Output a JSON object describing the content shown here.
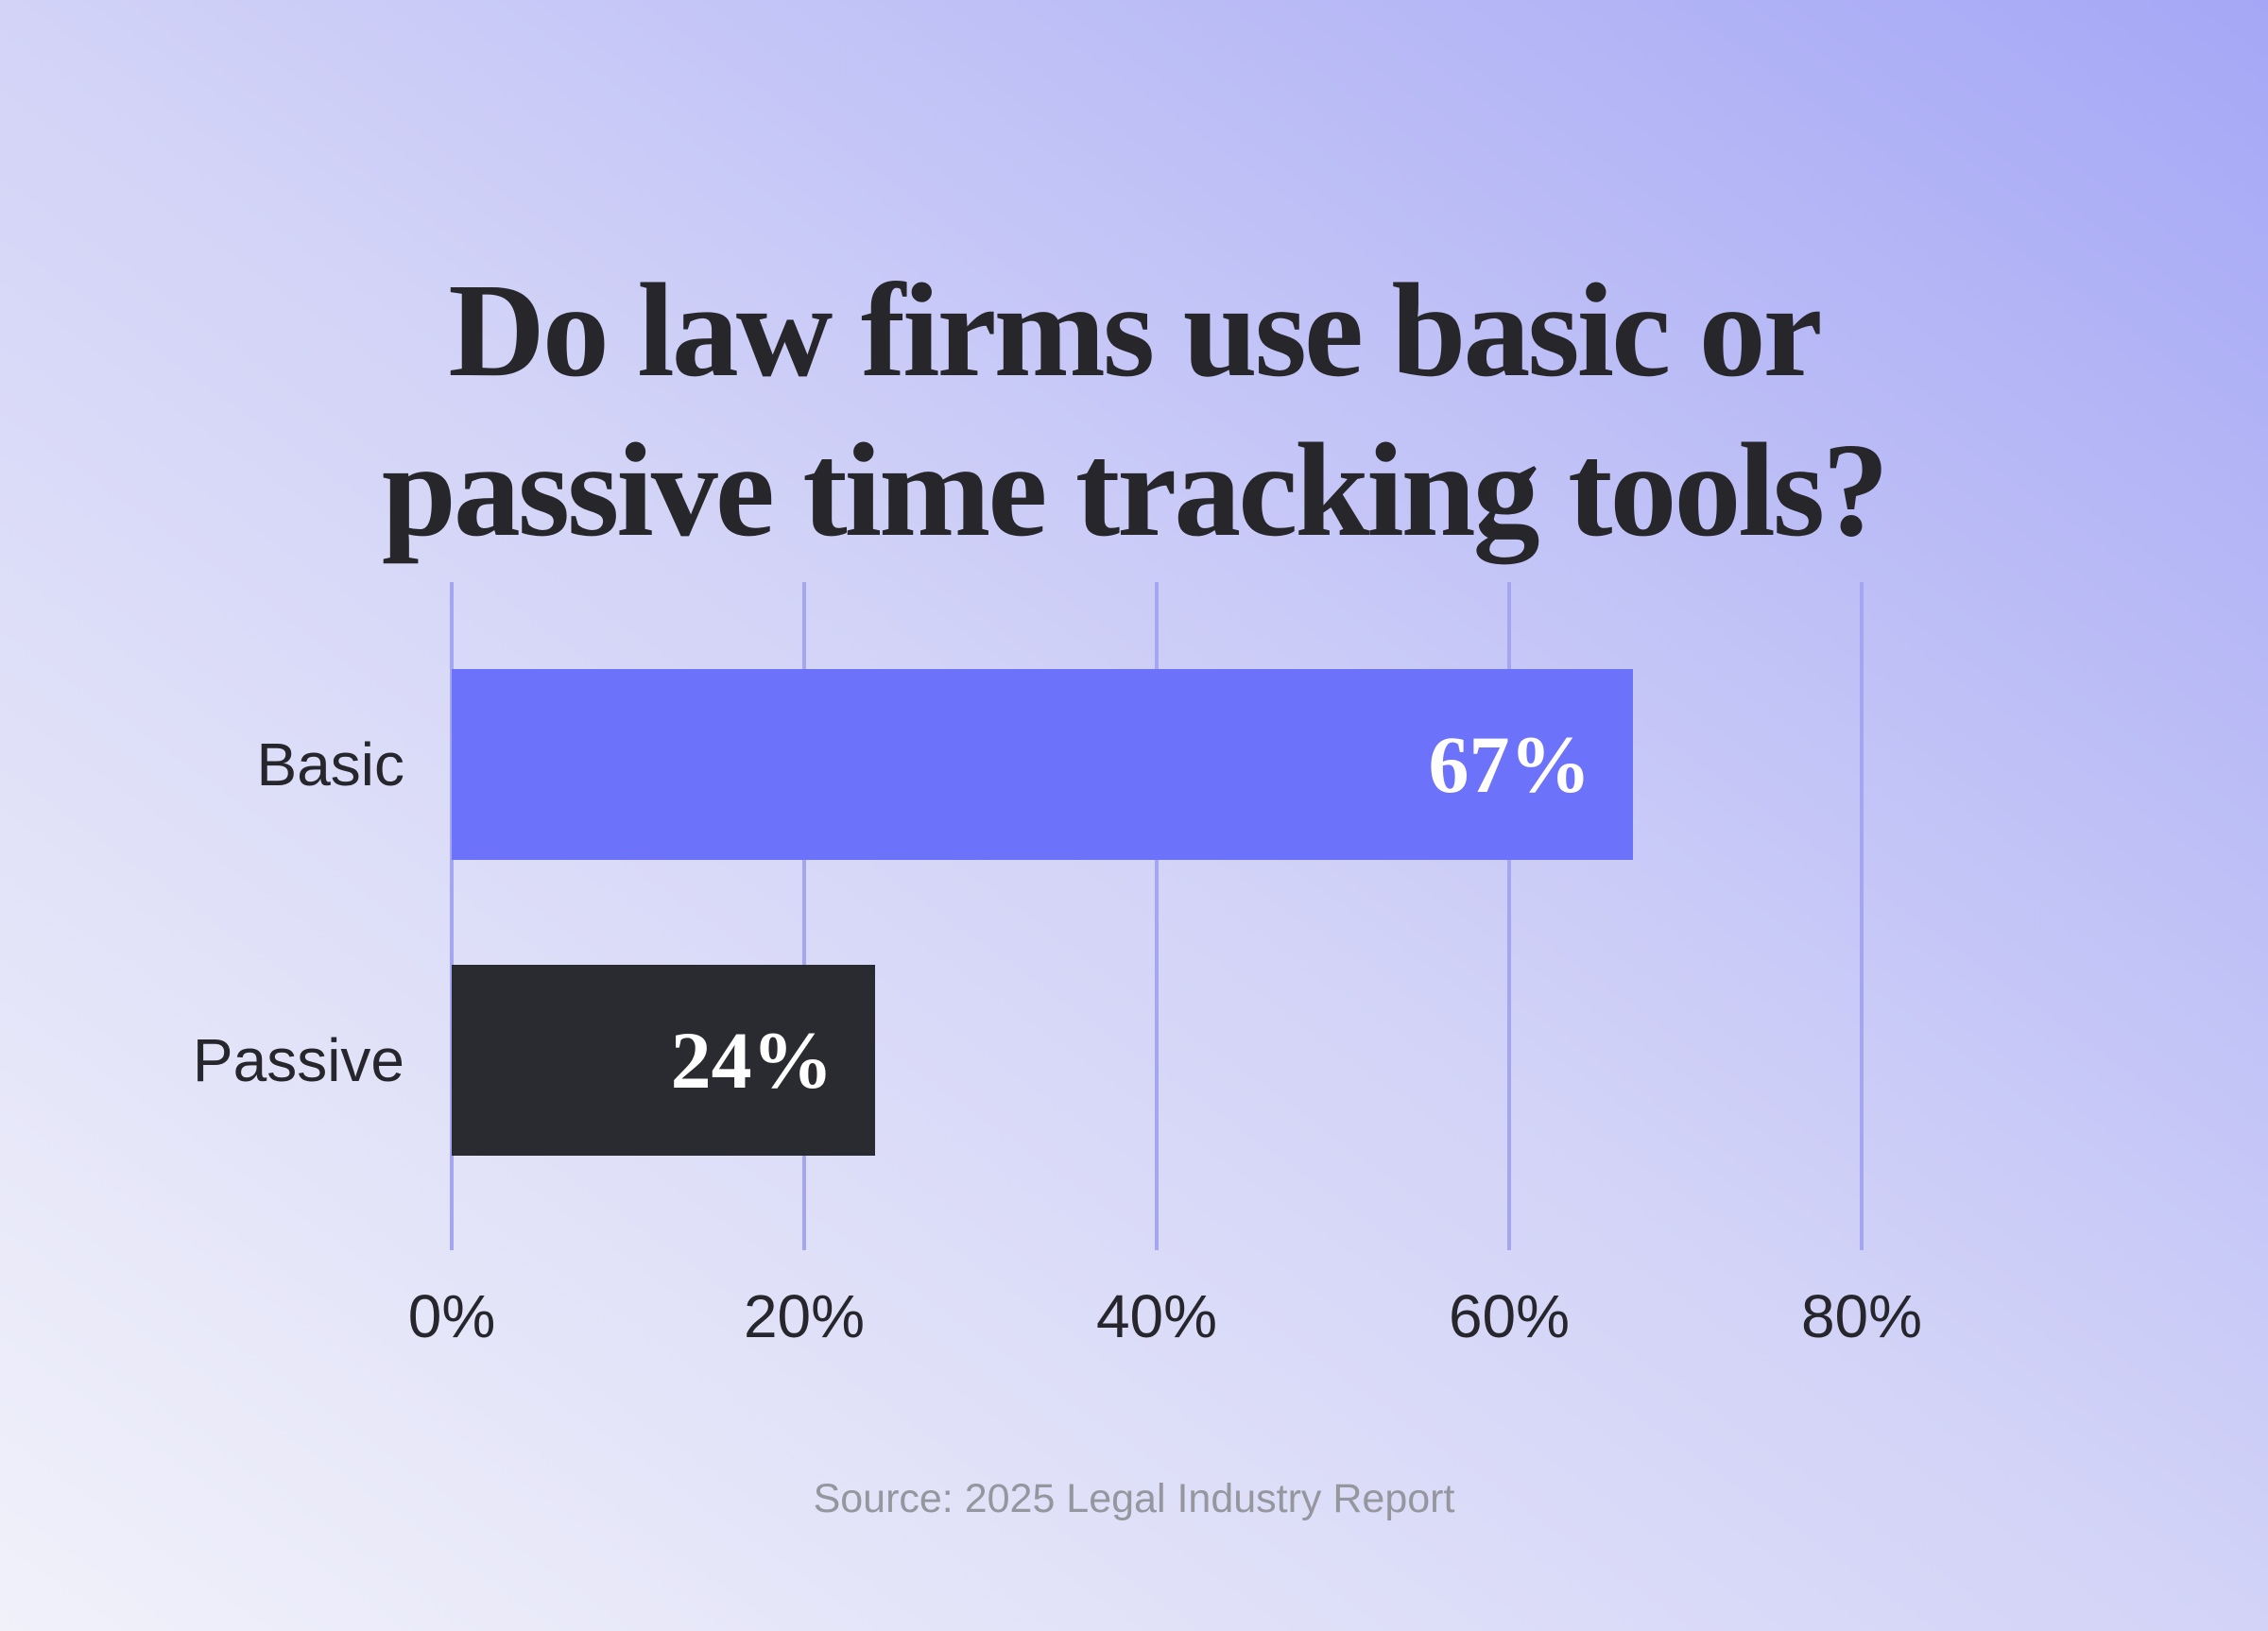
{
  "title": {
    "line1": "Do law firms use basic or",
    "line2": "passive time tracking tools?"
  },
  "source_text": "Source: 2025 Legal Industry Report",
  "colors": {
    "background_start": "#f1f1fa",
    "background_mid": "#d2d3f7",
    "background_end": "#a5a7f6",
    "title_text": "#26262b",
    "axis_text": "#26262c",
    "gridline": "#a4a6f1",
    "value_text": "#ffffff",
    "source_text": "#96969f",
    "bar_basic": "#6d72fb",
    "bar_passive": "#2a2a31"
  },
  "chart_data": {
    "type": "bar",
    "orientation": "horizontal",
    "title": "Do law firms use basic or passive time tracking tools?",
    "categories": [
      "Basic",
      "Passive"
    ],
    "values": [
      67,
      24
    ],
    "value_labels": [
      "67%",
      "24%"
    ],
    "bar_colors": [
      "#6d72fb",
      "#2a2a31"
    ],
    "xlabel": "",
    "ylabel": "",
    "xlim": [
      0,
      80
    ],
    "x_ticks": [
      0,
      20,
      40,
      60,
      80
    ],
    "x_tick_labels": [
      "0%",
      "20%",
      "40%",
      "60%",
      "80%"
    ],
    "grid": true,
    "legend": false,
    "source": "Source: 2025 Legal Industry Report"
  }
}
